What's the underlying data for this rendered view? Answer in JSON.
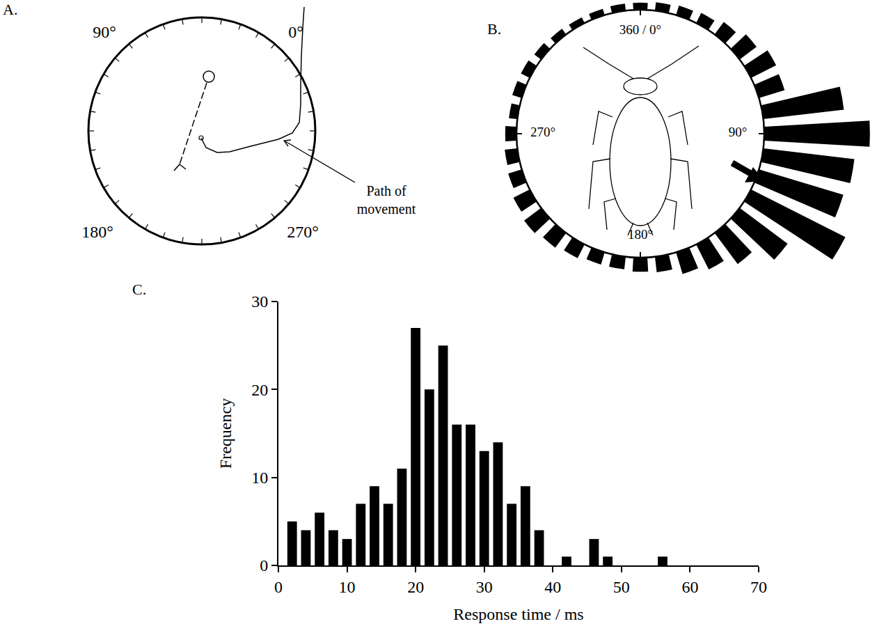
{
  "panel_a": {
    "title": "A.",
    "angle_labels": [
      "90°",
      "0°",
      "180°",
      "270°"
    ],
    "annotation": "Path of movement"
  },
  "chart_data": [
    {
      "type": "barpolar",
      "title": "B.",
      "x": [
        0,
        10,
        20,
        30,
        40,
        50,
        60,
        70,
        80,
        90,
        100,
        110,
        120,
        130,
        140,
        150,
        160,
        170,
        180,
        190,
        200,
        210,
        220,
        230,
        240,
        250,
        260,
        270,
        280,
        290,
        300,
        310,
        320,
        330,
        340,
        350
      ],
      "values": [
        10,
        12,
        14,
        16,
        22,
        30,
        40,
        38,
        115,
        150,
        130,
        125,
        150,
        85,
        55,
        40,
        32,
        22,
        20,
        18,
        18,
        22,
        26,
        30,
        26,
        20,
        18,
        16,
        12,
        14,
        14,
        12,
        10,
        9,
        9,
        10
      ],
      "ylim": [
        0,
        160
      ],
      "xticks": [
        {
          "value": 0,
          "label": "360 / 0°"
        },
        {
          "value": 90,
          "label": "90°"
        },
        {
          "value": 180,
          "label": "180°"
        },
        {
          "value": 270,
          "label": "270°"
        }
      ],
      "tick_labels": "x",
      "color": "#000000"
    },
    {
      "type": "histogram",
      "title": "C.",
      "bins": [
        1,
        3,
        5,
        7,
        9,
        11,
        13,
        15,
        17,
        19,
        21,
        23,
        25,
        27,
        29,
        31,
        33,
        35,
        37,
        39,
        41,
        43,
        45,
        47,
        49,
        51,
        53,
        55,
        57
      ],
      "values": [
        5,
        4,
        6,
        4,
        3,
        7,
        9,
        7,
        11,
        27,
        20,
        25,
        16,
        16,
        13,
        14,
        7,
        9,
        4,
        0,
        1,
        0,
        3,
        1,
        0,
        0,
        0,
        1
      ],
      "xlabel": "Response time / ms",
      "ylabel": "Frequency",
      "xlim": [
        0,
        70
      ],
      "ylim": [
        0,
        30
      ],
      "xticks": [
        0,
        10,
        20,
        30,
        40,
        50,
        60,
        70
      ],
      "yticks": [
        0,
        10,
        20,
        30
      ],
      "color": "#000000"
    }
  ]
}
